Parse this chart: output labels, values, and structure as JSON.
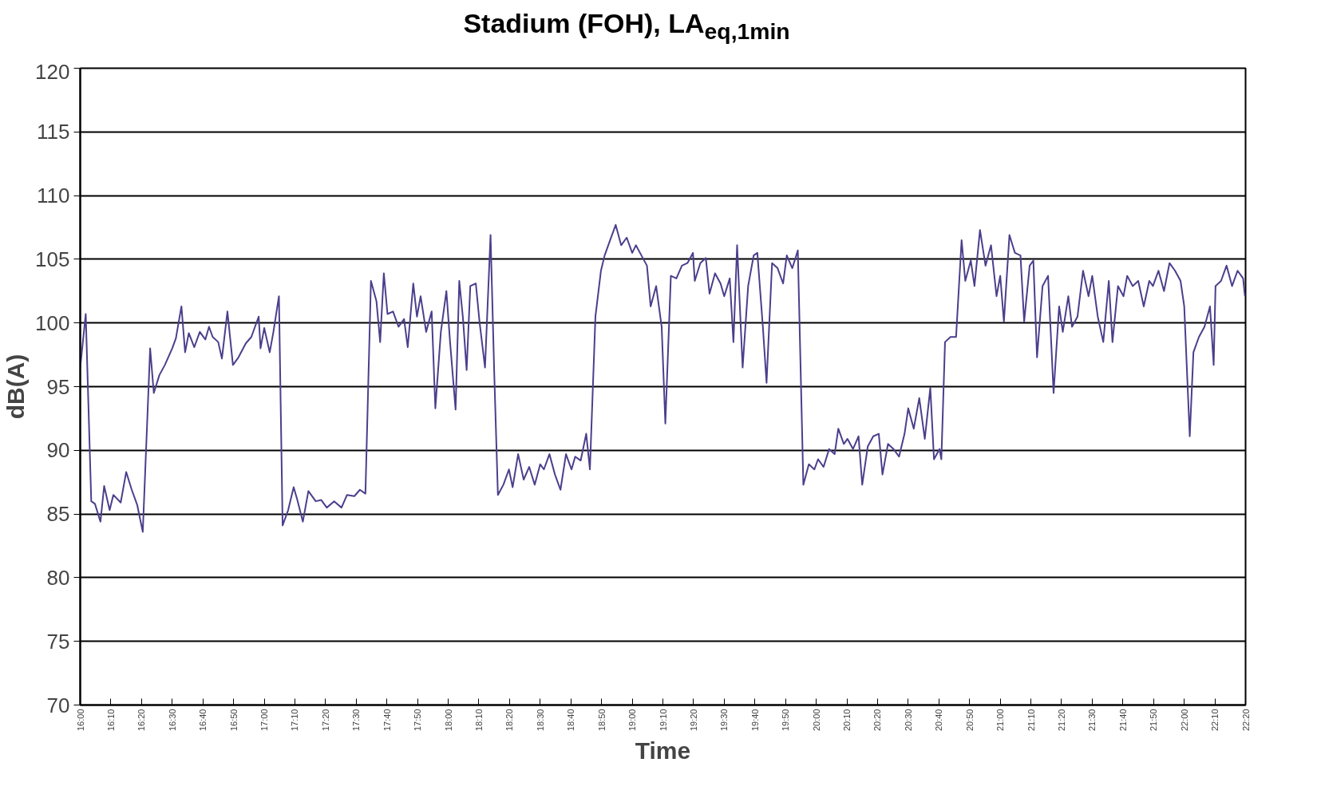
{
  "chart_data": {
    "type": "line",
    "title": "Stadium (FOH), LA$_{eq,1min}$",
    "xlabel": "Time",
    "ylabel": "dB(A)",
    "ylim": [
      70,
      120
    ],
    "yticks": [
      70,
      75,
      80,
      85,
      90,
      95,
      100,
      105,
      110,
      115,
      120
    ],
    "xlim": [
      16,
      22.3333
    ],
    "xticks": [
      {
        "value": 16,
        "label": "16:00"
      },
      {
        "value": 16.1667,
        "label": "16:10"
      },
      {
        "value": 16.3333,
        "label": "16:20"
      },
      {
        "value": 16.5,
        "label": "16:30"
      },
      {
        "value": 16.6667,
        "label": "16:40"
      },
      {
        "value": 16.8333,
        "label": "16:50"
      },
      {
        "value": 17,
        "label": "17:00"
      },
      {
        "value": 17.1667,
        "label": "17:10"
      },
      {
        "value": 17.3333,
        "label": "17:20"
      },
      {
        "value": 17.5,
        "label": "17:30"
      },
      {
        "value": 17.6667,
        "label": "17:40"
      },
      {
        "value": 17.8333,
        "label": "17:50"
      },
      {
        "value": 18,
        "label": "18:00"
      },
      {
        "value": 18.1667,
        "label": "18:10"
      },
      {
        "value": 18.3333,
        "label": "18:20"
      },
      {
        "value": 18.5,
        "label": "18:30"
      },
      {
        "value": 18.6667,
        "label": "18:40"
      },
      {
        "value": 18.8333,
        "label": "18:50"
      },
      {
        "value": 19,
        "label": "19:00"
      },
      {
        "value": 19.1667,
        "label": "19:10"
      },
      {
        "value": 19.3333,
        "label": "19:20"
      },
      {
        "value": 19.5,
        "label": "19:30"
      },
      {
        "value": 19.6667,
        "label": "19:40"
      },
      {
        "value": 19.8333,
        "label": "19:50"
      },
      {
        "value": 20,
        "label": "20:00"
      },
      {
        "value": 20.1667,
        "label": "20:10"
      },
      {
        "value": 20.3333,
        "label": "20:20"
      },
      {
        "value": 20.5,
        "label": "20:30"
      },
      {
        "value": 20.6667,
        "label": "20:40"
      },
      {
        "value": 20.8333,
        "label": "20:50"
      },
      {
        "value": 21,
        "label": "21:00"
      },
      {
        "value": 21.1667,
        "label": "21:10"
      },
      {
        "value": 21.3333,
        "label": "21:20"
      },
      {
        "value": 21.5,
        "label": "21:30"
      },
      {
        "value": 21.6667,
        "label": "21:40"
      },
      {
        "value": 21.8333,
        "label": "21:50"
      },
      {
        "value": 22,
        "label": "22:00"
      },
      {
        "value": 22.1667,
        "label": "22:10"
      },
      {
        "value": 22.3333,
        "label": "22:20"
      }
    ],
    "grid": "y",
    "marker": "none",
    "line_style": "solid",
    "series": [
      {
        "color": "#4b3f8c",
        "x": [
          16.0,
          16.03,
          16.06,
          16.08,
          16.11,
          16.13,
          16.16,
          16.18,
          16.22,
          16.25,
          16.28,
          16.31,
          16.34,
          16.38,
          16.4,
          16.43,
          16.46,
          16.5,
          16.52,
          16.55,
          16.57,
          16.59,
          16.62,
          16.65,
          16.68,
          16.7,
          16.72,
          16.75,
          16.77,
          16.8,
          16.83,
          16.86,
          16.9,
          16.93,
          16.97,
          16.98,
          17.0,
          17.03,
          17.05,
          17.08,
          17.1,
          17.13,
          17.16,
          17.18,
          17.21,
          17.24,
          17.28,
          17.31,
          17.34,
          17.38,
          17.42,
          17.45,
          17.49,
          17.52,
          17.55,
          17.58,
          17.61,
          17.63,
          17.65,
          17.67,
          17.7,
          17.73,
          17.76,
          17.78,
          17.81,
          17.83,
          17.85,
          17.88,
          17.91,
          17.93,
          17.96,
          17.99,
          18.01,
          18.04,
          18.06,
          18.08,
          18.1,
          18.12,
          18.15,
          18.17,
          18.2,
          18.23,
          18.25,
          18.27,
          18.3,
          18.33,
          18.35,
          18.38,
          18.41,
          18.44,
          18.47,
          18.5,
          18.52,
          18.55,
          18.58,
          18.61,
          18.64,
          18.67,
          18.69,
          18.72,
          18.75,
          18.77,
          18.8,
          18.83,
          18.85,
          18.88,
          18.91,
          18.94,
          18.97,
          19.0,
          19.02,
          19.05,
          19.08,
          19.1,
          19.13,
          19.16,
          19.18,
          19.21,
          19.24,
          19.27,
          19.3,
          19.33,
          19.34,
          19.37,
          19.4,
          19.42,
          19.45,
          19.48,
          19.5,
          19.53,
          19.55,
          19.57,
          19.6,
          19.63,
          19.66,
          19.68,
          19.71,
          19.73,
          19.76,
          19.79,
          19.82,
          19.84,
          19.87,
          19.9,
          19.93,
          19.96,
          19.99,
          20.01,
          20.04,
          20.07,
          20.1,
          20.12,
          20.15,
          20.17,
          20.2,
          20.23,
          20.25,
          20.28,
          20.31,
          20.34,
          20.36,
          20.39,
          20.42,
          20.45,
          20.48,
          20.5,
          20.53,
          20.56,
          20.59,
          20.62,
          20.64,
          20.67,
          20.68,
          20.7,
          20.73,
          20.76,
          20.79,
          20.81,
          20.84,
          20.86,
          20.89,
          20.92,
          20.95,
          20.98,
          21.0,
          21.02,
          21.05,
          21.08,
          21.11,
          21.13,
          21.16,
          21.18,
          21.2,
          21.23,
          21.26,
          21.29,
          21.32,
          21.34,
          21.37,
          21.39,
          21.42,
          21.45,
          21.48,
          21.5,
          21.53,
          21.56,
          21.59,
          21.61,
          21.64,
          21.67,
          21.69,
          21.72,
          21.75,
          21.78,
          21.81,
          21.83,
          21.86,
          21.89,
          21.92,
          21.95,
          21.98,
          22.0,
          22.03,
          22.05,
          22.08,
          22.11,
          22.14,
          22.16,
          22.17,
          22.2,
          22.23,
          22.26,
          22.29,
          22.32,
          22.33
        ],
        "values": [
          96.5,
          100.7,
          86,
          85.8,
          84.4,
          87.2,
          85.3,
          86.5,
          85.9,
          88.3,
          86.9,
          85.7,
          83.6,
          98,
          94.5,
          95.9,
          96.7,
          98,
          98.8,
          101.3,
          97.7,
          99.2,
          98.1,
          99.3,
          98.7,
          99.7,
          98.9,
          98.5,
          97.2,
          100.9,
          96.7,
          97.3,
          98.4,
          98.9,
          100.5,
          98,
          99.6,
          97.7,
          99.3,
          102.1,
          84.1,
          85.3,
          87.1,
          86.1,
          84.4,
          86.8,
          86,
          86.1,
          85.5,
          86,
          85.5,
          86.5,
          86.4,
          86.9,
          86.6,
          103.3,
          101.7,
          98.5,
          103.9,
          100.7,
          100.9,
          99.7,
          100.3,
          98.1,
          103.1,
          100.5,
          102.1,
          99.3,
          100.9,
          93.3,
          99.3,
          102.5,
          98.5,
          93.2,
          103.3,
          100.4,
          96.3,
          102.9,
          103.1,
          100.1,
          96.5,
          106.9,
          96.1,
          86.5,
          87.3,
          88.5,
          87.1,
          89.7,
          87.7,
          88.7,
          87.3,
          88.9,
          88.5,
          89.7,
          88.1,
          86.9,
          89.7,
          88.5,
          89.5,
          89.2,
          91.3,
          88.5,
          100.5,
          104.1,
          105.3,
          106.5,
          107.7,
          106.1,
          106.7,
          105.5,
          106.1,
          105.3,
          104.5,
          101.3,
          102.9,
          99.7,
          92.1,
          103.7,
          103.5,
          104.5,
          104.7,
          105.5,
          103.3,
          104.7,
          105.1,
          102.3,
          103.9,
          103.1,
          102.1,
          103.5,
          98.5,
          106.1,
          96.5,
          102.9,
          105.3,
          105.5,
          99.7,
          95.3,
          104.7,
          104.3,
          103.1,
          105.3,
          104.3,
          105.7,
          87.3,
          88.9,
          88.5,
          89.3,
          88.7,
          90.1,
          89.7,
          91.7,
          90.5,
          90.9,
          90.1,
          91.1,
          87.3,
          90.3,
          91.1,
          91.3,
          88.1,
          90.5,
          90.1,
          89.5,
          91.3,
          93.3,
          91.7,
          94.1,
          90.9,
          94.9,
          89.3,
          90.1,
          89.3,
          98.5,
          98.9,
          98.9,
          106.5,
          103.3,
          104.9,
          102.9,
          107.3,
          104.5,
          106.1,
          102.1,
          103.7,
          100.1,
          106.9,
          105.5,
          105.3,
          100.1,
          104.5,
          104.9,
          97.3,
          102.9,
          103.7,
          94.5,
          101.3,
          99.3,
          102.1,
          99.7,
          100.5,
          104.1,
          102.1,
          103.7,
          100.5,
          98.5,
          103.3,
          98.5,
          102.9,
          102.1,
          103.7,
          102.9,
          103.3,
          101.3,
          103.3,
          102.9,
          104.1,
          102.5,
          104.7,
          104.1,
          103.3,
          101.3,
          91.1,
          97.7,
          98.9,
          99.7,
          101.3,
          96.7,
          102.9,
          103.3,
          104.5,
          102.9,
          104.1,
          103.5,
          102.1
        ]
      }
    ]
  }
}
